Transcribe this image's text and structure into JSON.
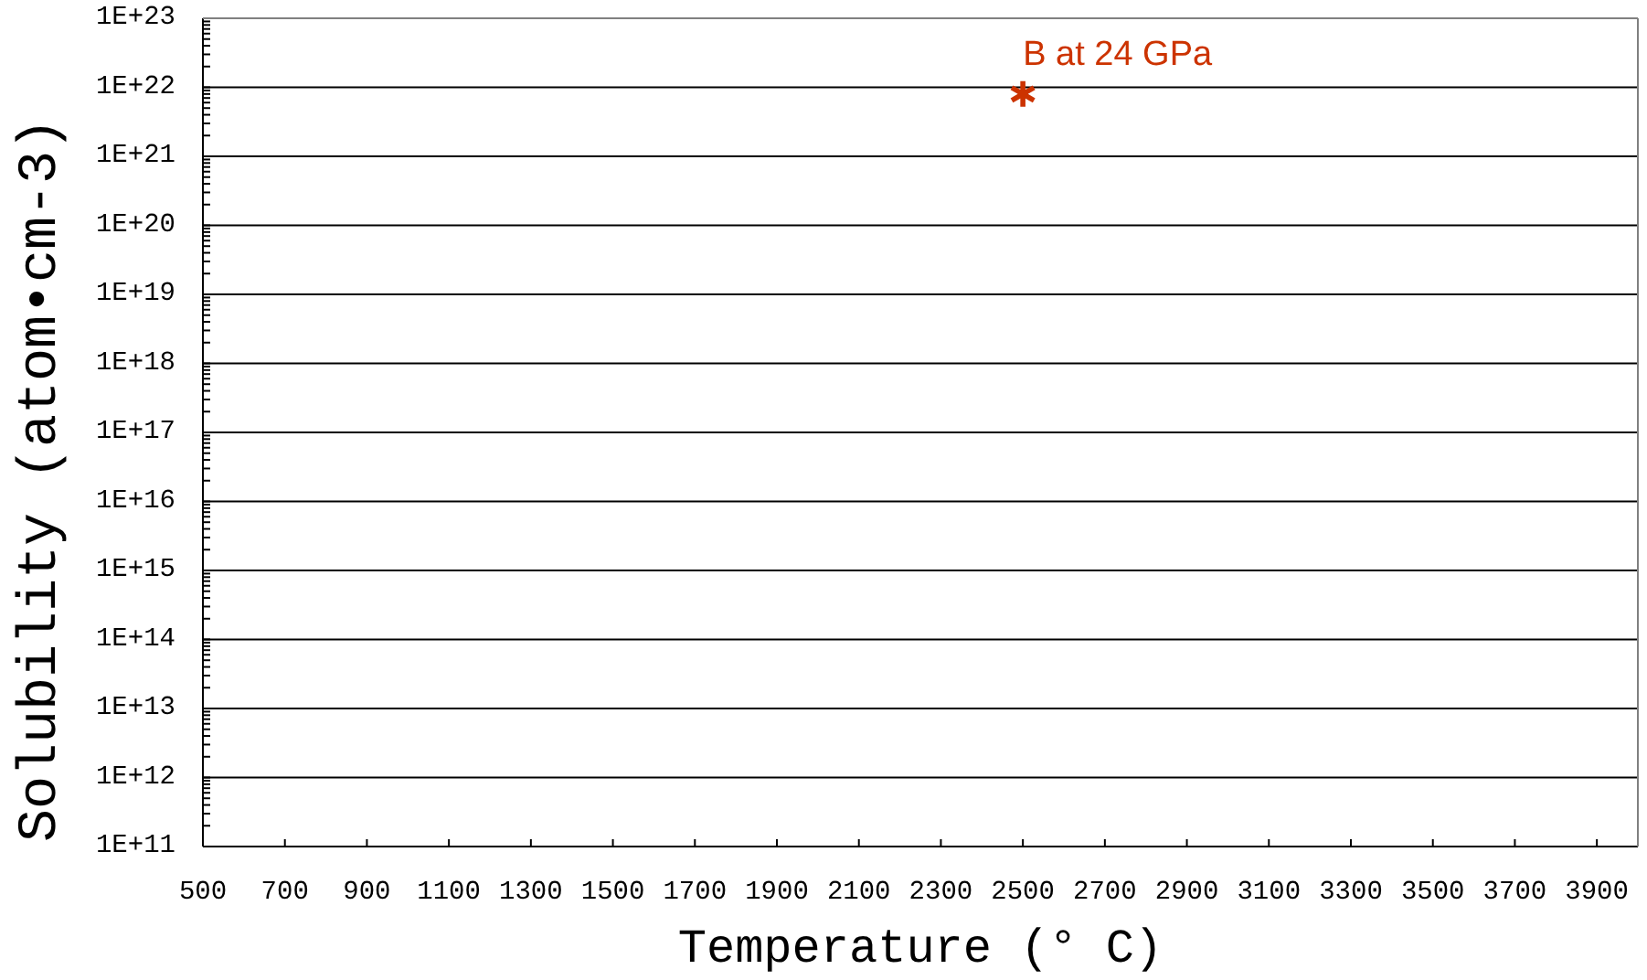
{
  "chart_data": {
    "type": "scatter",
    "xlabel": "Temperature (° C)",
    "ylabel": "Solubility (atom•cm-3)",
    "x": [
      2500
    ],
    "series": [
      {
        "color": "#cc3300",
        "values": [
          8e+21
        ]
      }
    ],
    "annotations": [
      {
        "text": "B at 24 GPa",
        "x": 2500,
        "y": 8e+21
      }
    ],
    "xlim": [
      500,
      4000
    ],
    "xticks": [
      500,
      700,
      900,
      1100,
      1300,
      1500,
      1700,
      1900,
      2100,
      2300,
      2500,
      2700,
      2900,
      3100,
      3300,
      3500,
      3700,
      3900
    ],
    "ylim": [
      100000000000.0,
      1e+23
    ],
    "yticks": [
      {
        "value": 100000000000.0,
        "label": "1E+11"
      },
      {
        "value": 200000000000.0,
        "label": null
      },
      {
        "value": 300000000000.0,
        "label": null
      },
      {
        "value": 400000000000.0,
        "label": null
      },
      {
        "value": 500000000000.0,
        "label": null
      },
      {
        "value": 600000000000.0,
        "label": null
      },
      {
        "value": 700000000000.0,
        "label": null
      },
      {
        "value": 800000000000.0,
        "label": null
      },
      {
        "value": 900000000000.0,
        "label": null
      },
      {
        "value": 1000000000000.0,
        "label": "1E+12"
      },
      {
        "value": 2000000000000.0,
        "label": null
      },
      {
        "value": 3000000000000.0,
        "label": null
      },
      {
        "value": 4000000000000.0,
        "label": null
      },
      {
        "value": 5000000000000.0,
        "label": null
      },
      {
        "value": 6000000000000.0,
        "label": null
      },
      {
        "value": 7000000000000.0,
        "label": null
      },
      {
        "value": 8000000000000.0,
        "label": null
      },
      {
        "value": 9000000000000.0,
        "label": null
      },
      {
        "value": 10000000000000.0,
        "label": "1E+13"
      },
      {
        "value": 20000000000000.0,
        "label": null
      },
      {
        "value": 30000000000000.0,
        "label": null
      },
      {
        "value": 40000000000000.0,
        "label": null
      },
      {
        "value": 50000000000000.0,
        "label": null
      },
      {
        "value": 60000000000000.0,
        "label": null
      },
      {
        "value": 70000000000000.0,
        "label": null
      },
      {
        "value": 80000000000000.0,
        "label": null
      },
      {
        "value": 90000000000000.0,
        "label": null
      },
      {
        "value": 100000000000000.0,
        "label": "1E+14"
      },
      {
        "value": 200000000000000.0,
        "label": null
      },
      {
        "value": 300000000000000.0,
        "label": null
      },
      {
        "value": 400000000000000.0,
        "label": null
      },
      {
        "value": 500000000000000.0,
        "label": null
      },
      {
        "value": 600000000000000.0,
        "label": null
      },
      {
        "value": 700000000000000.0,
        "label": null
      },
      {
        "value": 800000000000000.0,
        "label": null
      },
      {
        "value": 900000000000000.0,
        "label": null
      },
      {
        "value": 1000000000000000.0,
        "label": "1E+15"
      },
      {
        "value": 2000000000000000.0,
        "label": null
      },
      {
        "value": 3000000000000000.0,
        "label": null
      },
      {
        "value": 4000000000000000.0,
        "label": null
      },
      {
        "value": 5000000000000000.0,
        "label": null
      },
      {
        "value": 6000000000000000.0,
        "label": null
      },
      {
        "value": 7000000000000000.0,
        "label": null
      },
      {
        "value": 8000000000000000.0,
        "label": null
      },
      {
        "value": 9000000000000000.0,
        "label": null
      },
      {
        "value": 1e+16,
        "label": "1E+16"
      },
      {
        "value": 2e+16,
        "label": null
      },
      {
        "value": 3e+16,
        "label": null
      },
      {
        "value": 4e+16,
        "label": null
      },
      {
        "value": 5e+16,
        "label": null
      },
      {
        "value": 6e+16,
        "label": null
      },
      {
        "value": 7e+16,
        "label": null
      },
      {
        "value": 8e+16,
        "label": null
      },
      {
        "value": 9e+16,
        "label": null
      },
      {
        "value": 1e+17,
        "label": "1E+17"
      },
      {
        "value": 2e+17,
        "label": null
      },
      {
        "value": 3e+17,
        "label": null
      },
      {
        "value": 4e+17,
        "label": null
      },
      {
        "value": 5e+17,
        "label": null
      },
      {
        "value": 6e+17,
        "label": null
      },
      {
        "value": 7e+17,
        "label": null
      },
      {
        "value": 8e+17,
        "label": null
      },
      {
        "value": 9e+17,
        "label": null
      },
      {
        "value": 1e+18,
        "label": "1E+18"
      },
      {
        "value": 2e+18,
        "label": null
      },
      {
        "value": 3e+18,
        "label": null
      },
      {
        "value": 4e+18,
        "label": null
      },
      {
        "value": 5e+18,
        "label": null
      },
      {
        "value": 6e+18,
        "label": null
      },
      {
        "value": 7e+18,
        "label": null
      },
      {
        "value": 8e+18,
        "label": null
      },
      {
        "value": 9e+18,
        "label": null
      },
      {
        "value": 1e+19,
        "label": "1E+19"
      },
      {
        "value": 2e+19,
        "label": null
      },
      {
        "value": 3e+19,
        "label": null
      },
      {
        "value": 4e+19,
        "label": null
      },
      {
        "value": 5e+19,
        "label": null
      },
      {
        "value": 6e+19,
        "label": null
      },
      {
        "value": 7e+19,
        "label": null
      },
      {
        "value": 8e+19,
        "label": null
      },
      {
        "value": 9e+19,
        "label": null
      },
      {
        "value": 1e+20,
        "label": "1E+20"
      },
      {
        "value": 2e+20,
        "label": null
      },
      {
        "value": 3e+20,
        "label": null
      },
      {
        "value": 4e+20,
        "label": null
      },
      {
        "value": 5e+20,
        "label": null
      },
      {
        "value": 6e+20,
        "label": null
      },
      {
        "value": 7e+20,
        "label": null
      },
      {
        "value": 8e+20,
        "label": null
      },
      {
        "value": 9e+20,
        "label": null
      },
      {
        "value": 1e+21,
        "label": "1E+21"
      },
      {
        "value": 2e+21,
        "label": null
      },
      {
        "value": 3e+21,
        "label": null
      },
      {
        "value": 4e+21,
        "label": null
      },
      {
        "value": 5e+21,
        "label": null
      },
      {
        "value": 6e+21,
        "label": null
      },
      {
        "value": 7e+21,
        "label": null
      },
      {
        "value": 8e+21,
        "label": null
      },
      {
        "value": 9e+21,
        "label": null
      },
      {
        "value": 1e+22,
        "label": "1E+22"
      },
      {
        "value": 2e+22,
        "label": null
      },
      {
        "value": 3e+22,
        "label": null
      },
      {
        "value": 4e+22,
        "label": null
      },
      {
        "value": 5e+22,
        "label": null
      },
      {
        "value": 6e+22,
        "label": null
      },
      {
        "value": 7e+22,
        "label": null
      },
      {
        "value": 8e+22,
        "label": null
      },
      {
        "value": 9e+22,
        "label": null
      },
      {
        "value": 1e+23,
        "label": "1E+23"
      }
    ],
    "log": "y",
    "grid": "y",
    "marker": "star"
  }
}
